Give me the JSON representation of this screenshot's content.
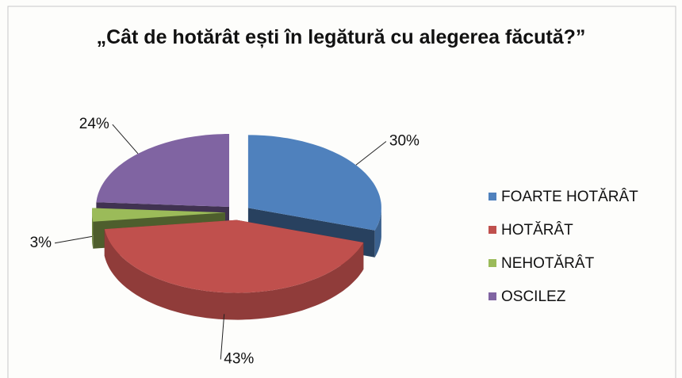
{
  "chart_data": {
    "type": "pie3d",
    "title": "„Cât de hotărât ești în legătură cu alegerea făcută?”",
    "categories": [
      "FOARTE HOTĂRÂT",
      "HOTĂRÂT",
      "NEHOTĂRÂT",
      "OSCILEZ"
    ],
    "values": [
      30,
      43,
      3,
      24
    ],
    "value_labels": [
      "30%",
      "43%",
      "3%",
      "24%"
    ],
    "colors": [
      "#4f81bd",
      "#c0504d",
      "#9bbb59",
      "#8064a2"
    ],
    "legend": "right",
    "exploded": true
  }
}
